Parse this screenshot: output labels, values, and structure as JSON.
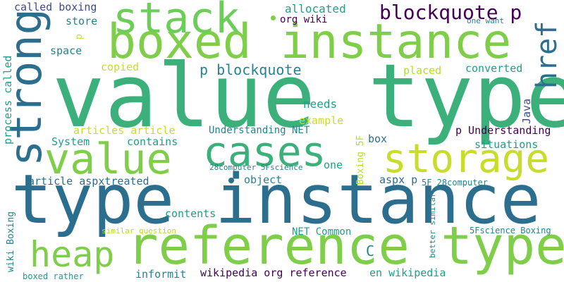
{
  "colors": {
    "background": "#ffffff",
    "palette": [
      "#2c6e8e",
      "#3bb07a",
      "#7fce4a",
      "#c7dd2a",
      "#440154",
      "#26838f",
      "#1f9e89",
      "#6cce59",
      "#b5de2b",
      "#3e4a89"
    ]
  },
  "words": [
    {
      "id": "value-type",
      "text": "value type"
    },
    {
      "id": "type-instance",
      "text": "type instance"
    },
    {
      "id": "reference-type",
      "text": "reference type"
    },
    {
      "id": "boxed-instance",
      "text": "boxed instance"
    },
    {
      "id": "stack",
      "text": "stack"
    },
    {
      "id": "strong",
      "text": "strong"
    },
    {
      "id": "cases",
      "text": "cases"
    },
    {
      "id": "storage",
      "text": "storage"
    },
    {
      "id": "value",
      "text": "value"
    },
    {
      "id": "heap",
      "text": "heap"
    },
    {
      "id": "href",
      "text": "href"
    },
    {
      "id": "blockquote-p",
      "text": "blockquote p"
    },
    {
      "id": "p-blockquote",
      "text": "p blockquote"
    },
    {
      "id": "called-boxing",
      "text": "called boxing"
    },
    {
      "id": "allocated",
      "text": "allocated"
    },
    {
      "id": "org-wiki",
      "text": "org wiki"
    },
    {
      "id": "store",
      "text": "store"
    },
    {
      "id": "space",
      "text": "space"
    },
    {
      "id": "copied",
      "text": "copied"
    },
    {
      "id": "placed",
      "text": "placed"
    },
    {
      "id": "converted",
      "text": "converted"
    },
    {
      "id": "one-want",
      "text": "one want"
    },
    {
      "id": "process-called",
      "text": "process called"
    },
    {
      "id": "needs",
      "text": "needs"
    },
    {
      "id": "example",
      "text": "example"
    },
    {
      "id": "java",
      "text": "Java"
    },
    {
      "id": "articles-article",
      "text": "articles article"
    },
    {
      "id": "understanding-net",
      "text": "Understanding NET"
    },
    {
      "id": "p-understanding",
      "text": "p Understanding"
    },
    {
      "id": "system",
      "text": "System"
    },
    {
      "id": "contains",
      "text": "contains"
    },
    {
      "id": "box",
      "text": "box"
    },
    {
      "id": "situations",
      "text": "situations"
    },
    {
      "id": "computer-science-28",
      "text": "28computer 5Fscience"
    },
    {
      "id": "one",
      "text": "one"
    },
    {
      "id": "boxing-5f",
      "text": "Boxing 5F"
    },
    {
      "id": "article-aspxtreated",
      "text": "article aspxtreated"
    },
    {
      "id": "object",
      "text": "object"
    },
    {
      "id": "aspx-p",
      "text": "aspx p"
    },
    {
      "id": "5f-28computer",
      "text": "5F 28computer"
    },
    {
      "id": "contents",
      "text": "contents"
    },
    {
      "id": "similar-question",
      "text": "similar question"
    },
    {
      "id": "net-common",
      "text": "NET Common"
    },
    {
      "id": "c",
      "text": "C"
    },
    {
      "id": "better-similar",
      "text": "better similar"
    },
    {
      "id": "5fscience-boxing",
      "text": "5Fscience Boxing"
    },
    {
      "id": "wiki-boxing",
      "text": "wiki Boxing"
    },
    {
      "id": "informit",
      "text": "informit"
    },
    {
      "id": "wikipedia-org-reference",
      "text": "wikipedia org reference"
    },
    {
      "id": "en-wikipedia",
      "text": "en wikipedia"
    },
    {
      "id": "boxed-rather",
      "text": "boxed rather"
    },
    {
      "id": "p-small",
      "text": "p"
    }
  ]
}
